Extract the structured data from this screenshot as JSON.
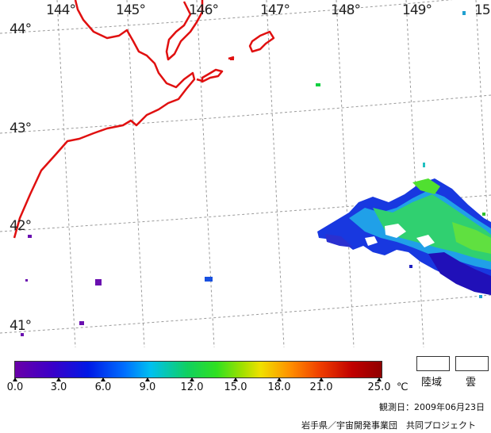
{
  "map": {
    "lon_labels": [
      "144",
      "145",
      "146",
      "147",
      "148",
      "149",
      "15"
    ],
    "lat_labels": [
      "44",
      "43",
      "42",
      "41"
    ]
  },
  "colorbar": {
    "ticks": [
      "0.0",
      "3.0",
      "6.0",
      "9.0",
      "12.0",
      "15.0",
      "18.0",
      "21.0",
      "25.0"
    ],
    "unit": "℃"
  },
  "legend": {
    "land_label": "陸域",
    "cloud_label": "雲"
  },
  "observation_date": "観測日：2009年06月23日",
  "credit": "岩手県／宇宙開発事業団　共同プロジェクト"
}
